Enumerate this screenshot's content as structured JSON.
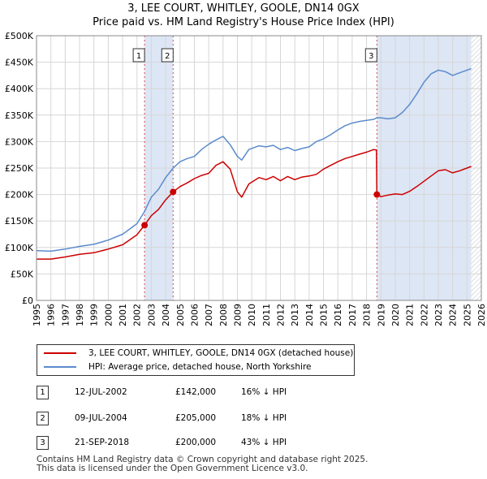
{
  "title": {
    "line1": "3, LEE COURT, WHITLEY, GOOLE, DN14 0GX",
    "line2": "Price paid vs. HM Land Registry's House Price Index (HPI)"
  },
  "chart_data": {
    "type": "line",
    "xlim": [
      1995,
      2026
    ],
    "ylim": [
      0,
      500000
    ],
    "x_ticks": [
      "1995",
      "1996",
      "1997",
      "1998",
      "1999",
      "2000",
      "2001",
      "2002",
      "2003",
      "2004",
      "2005",
      "2006",
      "2007",
      "2008",
      "2009",
      "2010",
      "2011",
      "2012",
      "2013",
      "2014",
      "2015",
      "2016",
      "2017",
      "2018",
      "2019",
      "2020",
      "2021",
      "2022",
      "2023",
      "2024",
      "2025",
      "2026"
    ],
    "y_ticks": [
      {
        "value": 0,
        "label": "£0"
      },
      {
        "value": 50000,
        "label": "£50K"
      },
      {
        "value": 100000,
        "label": "£100K"
      },
      {
        "value": 150000,
        "label": "£150K"
      },
      {
        "value": 200000,
        "label": "£200K"
      },
      {
        "value": 250000,
        "label": "£250K"
      },
      {
        "value": 300000,
        "label": "£300K"
      },
      {
        "value": 350000,
        "label": "£350K"
      },
      {
        "value": 400000,
        "label": "£400K"
      },
      {
        "value": 450000,
        "label": "£450K"
      },
      {
        "value": 500000,
        "label": "£500K"
      }
    ],
    "grid": true,
    "shaded_ranges": [
      [
        2002.53,
        2004.52
      ],
      [
        2018.72,
        2025.3
      ]
    ],
    "hatched_from": 2025.3,
    "series": [
      {
        "name": "3, LEE COURT, WHITLEY, GOOLE, DN14 0GX (detached house)",
        "color": "#cc0000",
        "x": [
          1995.0,
          1996.0,
          1997.0,
          1998.0,
          1999.0,
          2000.0,
          2001.0,
          2002.0,
          2002.53,
          2003.0,
          2003.5,
          2004.0,
          2004.52,
          2005.0,
          2005.5,
          2006.0,
          2006.5,
          2007.0,
          2007.5,
          2008.0,
          2008.5,
          2009.0,
          2009.3,
          2009.8,
          2010.5,
          2011.0,
          2011.5,
          2012.0,
          2012.5,
          2013.0,
          2013.5,
          2014.0,
          2014.5,
          2015.0,
          2015.5,
          2016.0,
          2016.5,
          2017.0,
          2017.5,
          2018.0,
          2018.5,
          2018.69,
          2018.72,
          2019.0,
          2019.5,
          2020.0,
          2020.5,
          2021.0,
          2021.5,
          2022.0,
          2022.5,
          2023.0,
          2023.5,
          2024.0,
          2024.5,
          2025.0,
          2025.3
        ],
        "values": [
          78000,
          78000,
          82000,
          87000,
          90000,
          97000,
          105000,
          124000,
          142000,
          160000,
          172000,
          190000,
          205000,
          215000,
          222000,
          230000,
          236000,
          240000,
          255000,
          262000,
          248000,
          205000,
          195000,
          220000,
          232000,
          228000,
          234000,
          226000,
          234000,
          228000,
          233000,
          235000,
          238000,
          248000,
          255000,
          262000,
          268000,
          272000,
          276000,
          280000,
          285000,
          284000,
          200000,
          196000,
          199000,
          201000,
          200000,
          206000,
          215000,
          225000,
          235000,
          245000,
          247000,
          241000,
          245000,
          250000,
          253000
        ]
      },
      {
        "name": "HPI: Average price, detached house, North Yorkshire",
        "color": "#5b8bcc",
        "x": [
          1995.0,
          1996.0,
          1997.0,
          1998.0,
          1999.0,
          2000.0,
          2001.0,
          2002.0,
          2002.53,
          2003.0,
          2003.5,
          2004.0,
          2004.52,
          2005.0,
          2005.5,
          2006.0,
          2006.5,
          2007.0,
          2007.5,
          2008.0,
          2008.5,
          2009.0,
          2009.3,
          2009.8,
          2010.5,
          2011.0,
          2011.5,
          2012.0,
          2012.5,
          2013.0,
          2013.5,
          2014.0,
          2014.5,
          2015.0,
          2015.5,
          2016.0,
          2016.5,
          2017.0,
          2017.5,
          2018.0,
          2018.5,
          2018.72,
          2019.0,
          2019.5,
          2020.0,
          2020.5,
          2021.0,
          2021.5,
          2022.0,
          2022.5,
          2023.0,
          2023.5,
          2024.0,
          2024.5,
          2025.0,
          2025.3
        ],
        "values": [
          94000,
          93000,
          97000,
          102000,
          106000,
          114000,
          125000,
          145000,
          168000,
          195000,
          210000,
          232000,
          250000,
          262000,
          268000,
          272000,
          285000,
          295000,
          303000,
          310000,
          294000,
          272000,
          265000,
          285000,
          292000,
          290000,
          293000,
          285000,
          289000,
          283000,
          287000,
          290000,
          300000,
          305000,
          313000,
          322000,
          330000,
          335000,
          338000,
          340000,
          342000,
          345000,
          345000,
          343000,
          345000,
          355000,
          370000,
          390000,
          412000,
          428000,
          435000,
          432000,
          425000,
          430000,
          435000,
          438000
        ]
      }
    ],
    "sales": [
      {
        "label": "1",
        "x": 2002.53,
        "value": 142000
      },
      {
        "label": "2",
        "x": 2004.52,
        "value": 205000
      },
      {
        "label": "3",
        "x": 2018.72,
        "value": 200000
      }
    ]
  },
  "legend": {
    "property": "3, LEE COURT, WHITLEY, GOOLE, DN14 0GX (detached house)",
    "hpi": "HPI: Average price, detached house, North Yorkshire",
    "property_color": "#cc0000",
    "hpi_color": "#5b8bcc"
  },
  "transactions": [
    {
      "num": "1",
      "date": "12-JUL-2002",
      "price": "£142,000",
      "hpi": "16% ↓ HPI"
    },
    {
      "num": "2",
      "date": "09-JUL-2004",
      "price": "£205,000",
      "hpi": "18% ↓ HPI"
    },
    {
      "num": "3",
      "date": "21-SEP-2018",
      "price": "£200,000",
      "hpi": "43% ↓ HPI"
    }
  ],
  "footer": {
    "line1": "Contains HM Land Registry data © Crown copyright and database right 2025.",
    "line2": "This data is licensed under the Open Government Licence v3.0."
  }
}
